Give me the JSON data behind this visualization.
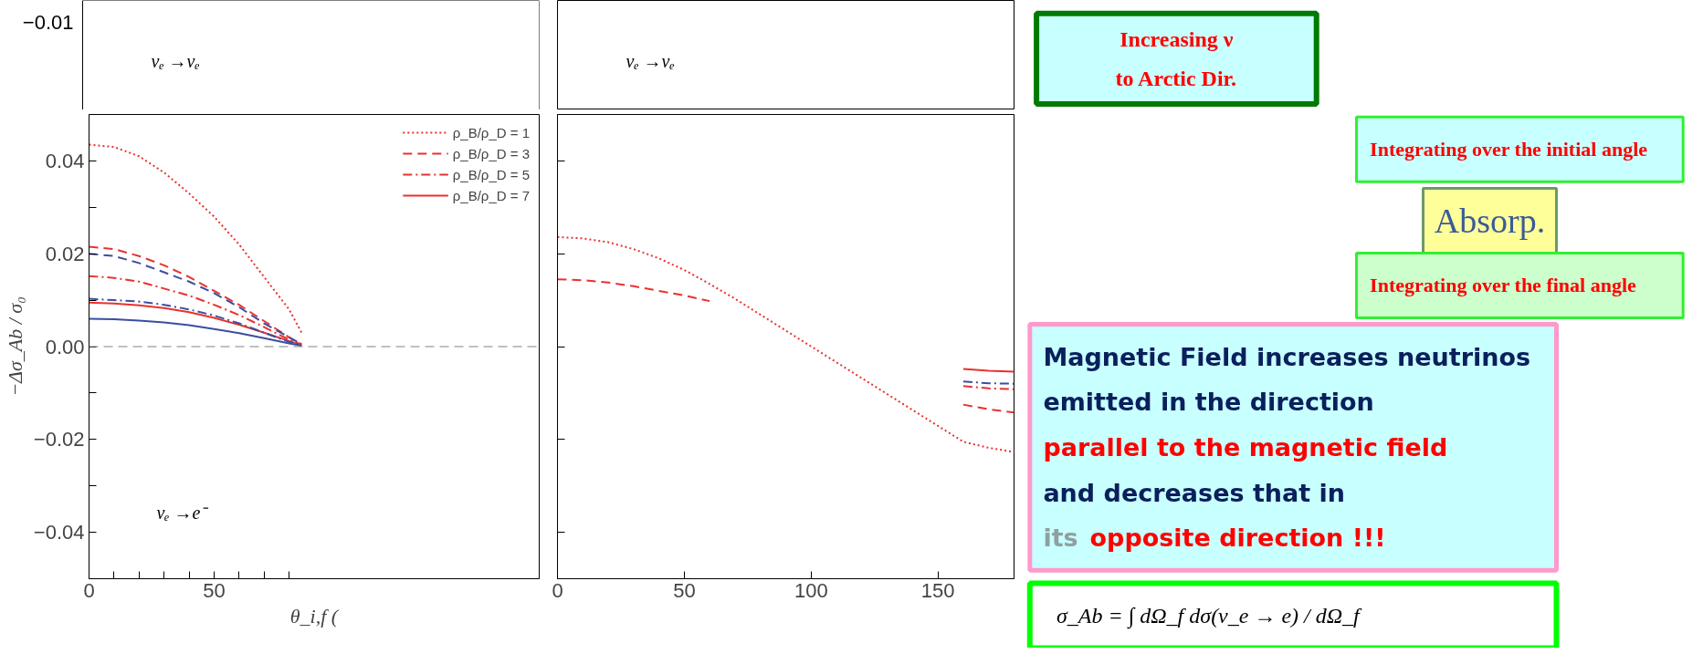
{
  "chart_data": [
    {
      "type": "other",
      "annotations": [
        "−0.01",
        "νₑ →νₑ"
      ]
    },
    {
      "type": "other",
      "annotations": [
        "νₑ →νₑ"
      ]
    },
    {
      "type": "line",
      "xlabel": "θ_i,f (",
      "ylabel": "−Δσ_Ab / σ₀",
      "xlim": [
        0,
        180
      ],
      "ylim": [
        -0.05,
        0.05
      ],
      "xticks": [
        0,
        {
          "value": 10,
          "label": null
        },
        {
          "value": 20,
          "label": null
        },
        {
          "value": 30,
          "label": null
        },
        {
          "value": 40,
          "label": null
        },
        50,
        {
          "value": 60,
          "label": null
        },
        {
          "value": 70,
          "label": null
        },
        {
          "value": 80,
          "label": null
        }
      ],
      "yticks": [
        {
          "value": -0.04,
          "label": "−0.04"
        },
        {
          "value": -0.03,
          "label": null
        },
        {
          "value": -0.02,
          "label": "−0.02"
        },
        {
          "value": -0.01,
          "label": null
        },
        {
          "value": 0,
          "label": "0.00"
        },
        {
          "value": 0.01,
          "label": null
        },
        {
          "value": 0.02,
          "label": "0.02"
        },
        {
          "value": 0.03,
          "label": null
        },
        {
          "value": 0.04,
          "label": "0.04"
        }
      ],
      "x": [
        0,
        10,
        20,
        30,
        40,
        50,
        60,
        70,
        80,
        85
      ],
      "series": [
        {
          "name": "ρ_B/ρ_D = 1",
          "color": "#e8322f",
          "line_style": "dotted",
          "values": [
            0.0435,
            0.043,
            0.041,
            0.0375,
            0.033,
            0.028,
            0.022,
            0.015,
            0.008,
            0.003
          ]
        },
        {
          "name": "ρ_B/ρ_D = 3",
          "color": "#e8322f",
          "line_style": "dashed",
          "values": [
            0.0215,
            0.021,
            0.0195,
            0.0175,
            0.015,
            0.012,
            0.009,
            0.0055,
            0.002,
            0.0005
          ]
        },
        {
          "name": "ρ_B/ρ_D = 5",
          "color": "#e8322f",
          "line_style": "dashdot",
          "values": [
            0.0152,
            0.0148,
            0.014,
            0.0125,
            0.011,
            0.009,
            0.0068,
            0.0042,
            0.0015,
            0.0004
          ]
        },
        {
          "name": "ρ_B/ρ_D = 7",
          "color": "#e8322f",
          "line_style": "solid",
          "values": [
            0.0095,
            0.0093,
            0.0089,
            0.0083,
            0.0074,
            0.0062,
            0.0047,
            0.003,
            0.0012,
            0.0003
          ]
        },
        {
          "color": "#3b4ea0",
          "line_style": "dashed",
          "values": [
            0.02,
            0.0195,
            0.018,
            0.016,
            0.014,
            0.0115,
            0.0085,
            0.005,
            0.002,
            0.0005
          ]
        },
        {
          "color": "#3b4ea0",
          "line_style": "dashdot",
          "values": [
            0.0103,
            0.01,
            0.0097,
            0.009,
            0.008,
            0.0067,
            0.005,
            0.003,
            0.001,
            0.0003
          ]
        },
        {
          "color": "#3b4ea0",
          "line_style": "solid",
          "values": [
            0.006,
            0.0059,
            0.0056,
            0.0052,
            0.0046,
            0.0038,
            0.0029,
            0.0018,
            0.0007,
            0.0002
          ]
        }
      ],
      "ref_lines": [
        {
          "axis": "y",
          "value": 0,
          "color": "#808080",
          "line_style": "dashed"
        }
      ],
      "legend": "top right",
      "annotations": [
        "νₑ →e⁻"
      ]
    },
    {
      "type": "line",
      "xlim": [
        0,
        180
      ],
      "ylim": [
        -0.05,
        0.05
      ],
      "tick_labels": "x",
      "xticks": [
        0,
        50,
        100,
        150
      ],
      "yticks": [
        {
          "value": -0.04,
          "label": null
        },
        {
          "value": -0.02,
          "label": null
        },
        {
          "value": 0,
          "label": null
        },
        {
          "value": 0.02,
          "label": null
        },
        {
          "value": 0.04,
          "label": null
        }
      ],
      "x": [
        0,
        10,
        20,
        30,
        40,
        50,
        60,
        70,
        160,
        170,
        180
      ],
      "series": [
        {
          "color": "#e8322f",
          "line_style": "dotted",
          "values": [
            0.0236,
            0.0233,
            0.0225,
            0.021,
            0.019,
            0.0165,
            0.0135,
            0.0103,
            -0.0205,
            -0.0218,
            -0.0227
          ]
        },
        {
          "color": "#e8322f",
          "line_style": "dashed",
          "values": [
            0.0145,
            0.0143,
            0.0138,
            0.013,
            0.012,
            0.011,
            0.0098,
            null,
            -0.0125,
            -0.0135,
            -0.0142
          ]
        },
        {
          "color": "#e8322f",
          "line_style": "dashdot",
          "values": [
            null,
            null,
            null,
            null,
            null,
            null,
            null,
            null,
            -0.0085,
            -0.009,
            -0.0092
          ]
        },
        {
          "color": "#3b4ea0",
          "line_style": "dashdot",
          "values": [
            null,
            null,
            null,
            null,
            null,
            null,
            null,
            null,
            -0.0075,
            -0.0079,
            -0.008
          ]
        },
        {
          "color": "#e8322f",
          "line_style": "solid",
          "values": [
            null,
            null,
            null,
            null,
            null,
            null,
            null,
            null,
            -0.0048,
            -0.0052,
            -0.0054
          ]
        }
      ]
    },
    {
      "type": "other",
      "annotations": [
        "Increasing ν",
        "to Arctic Dir.",
        "Integrating over the initial angle",
        "Absorp.",
        "Integrating over the final angle",
        "Magnetic Field increases neutrinos",
        "emitted in the direction",
        "parallel to the magnetic field",
        "and decreases that in",
        "its",
        "opposite direction !!!",
        "σ_Ab = ∫ dΩ_f dσ(ν_e → e) / dΩ_f"
      ]
    }
  ]
}
